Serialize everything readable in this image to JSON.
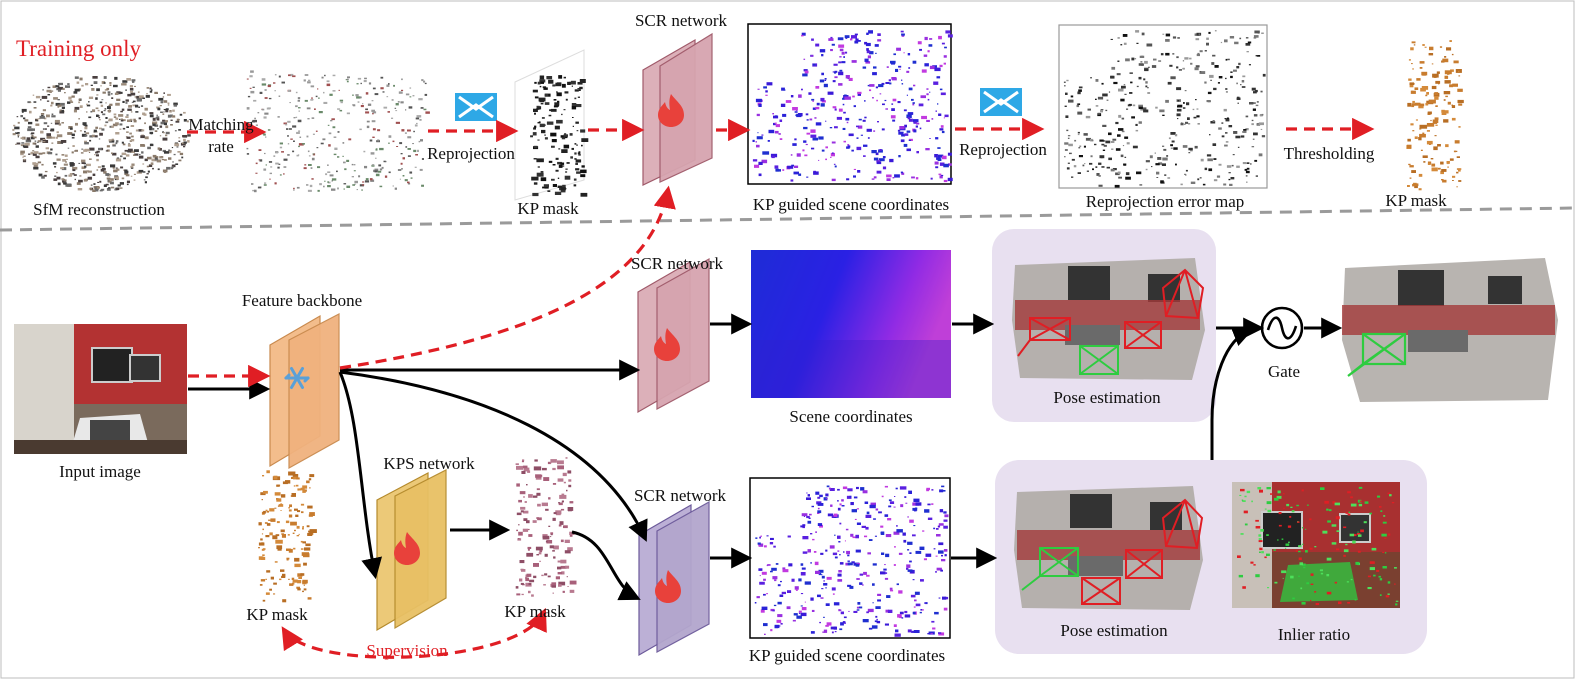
{
  "top_section": {
    "title": "Training only",
    "sfm_label": "SfM reconstruction",
    "matching_rate_line1": "Matching",
    "matching_rate_line2": "rate",
    "reprojection_label_1": "Reprojection",
    "kp_mask_label_1": "KP mask",
    "scr_network_label_1": "SCR network",
    "kp_guided_label_1": "KP guided scene coordinates",
    "reprojection_label_2": "Reprojection",
    "reprojection_error_map_label": "Reprojection error map",
    "thresholding_label": "Thresholding",
    "kp_mask_label_2": "KP mask"
  },
  "bottom_section": {
    "input_image_label": "Input image",
    "feature_backbone_label": "Feature backbone",
    "scr_network_label_2": "SCR network",
    "scene_coordinates_label": "Scene coordinates",
    "pose_estimation_label_1": "Pose estimation",
    "gate_label": "Gate",
    "kps_network_label": "KPS network",
    "kp_mask_label_3": "KP mask",
    "kp_mask_label_4": "KP mask",
    "supervision_label": "Supervision",
    "scr_network_label_3": "SCR network",
    "kp_guided_label_2": "KP guided scene coordinates",
    "pose_estimation_label_2": "Pose estimation",
    "inlier_ratio_label": "Inlier ratio"
  },
  "colors": {
    "dashed_arrow": "#e01e24",
    "solid_arrow": "#000000",
    "scr_pink": "#d9a9b3",
    "scr_purple": "#b3a6cd",
    "backbone_orange": "#f0b27e",
    "kps_yellow": "#e8c670",
    "pose_panel": "#e8e0f0",
    "fire": "#e8413b",
    "snowflake": "#5aa0d8",
    "reproj_icon": "#2ea8e6",
    "kp_mask_orange": "#c87c2e",
    "kp_mask_pink": "#a8607a"
  },
  "icons": [
    "fire-icon",
    "snowflake-icon",
    "reprojection-icon",
    "gate-icon"
  ]
}
